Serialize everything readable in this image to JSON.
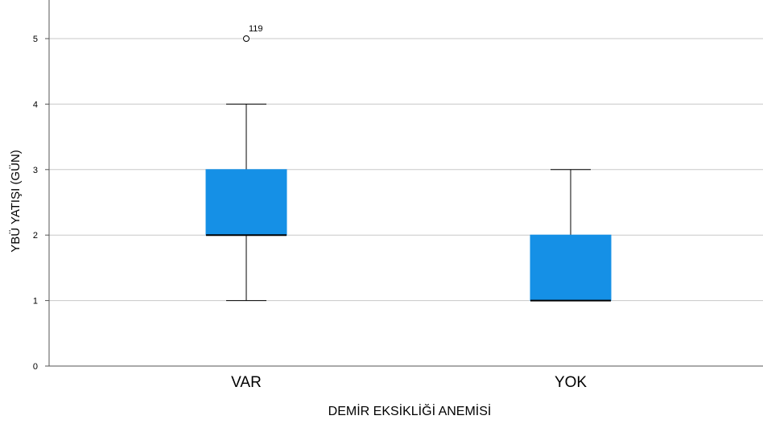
{
  "chart_data": {
    "type": "boxplot",
    "xlabel": "DEMİR EKSİKLİĞİ ANEMİSİ",
    "ylabel": "YBÜ YATIŞI (GÜN)",
    "ylim": [
      0,
      5.5
    ],
    "yticks": [
      0,
      1,
      2,
      3,
      4,
      5
    ],
    "grid": true,
    "box_color": "#1590e6",
    "categories": [
      "VAR",
      "YOK"
    ],
    "boxes": [
      {
        "category": "VAR",
        "whisker_low": 1,
        "q1": 2,
        "median": 2,
        "q3": 3,
        "whisker_high": 4,
        "outliers": [
          {
            "value": 5,
            "label": "119"
          }
        ]
      },
      {
        "category": "YOK",
        "whisker_low": 1,
        "q1": 1,
        "median": 1,
        "q3": 2,
        "whisker_high": 3,
        "outliers": []
      }
    ]
  }
}
